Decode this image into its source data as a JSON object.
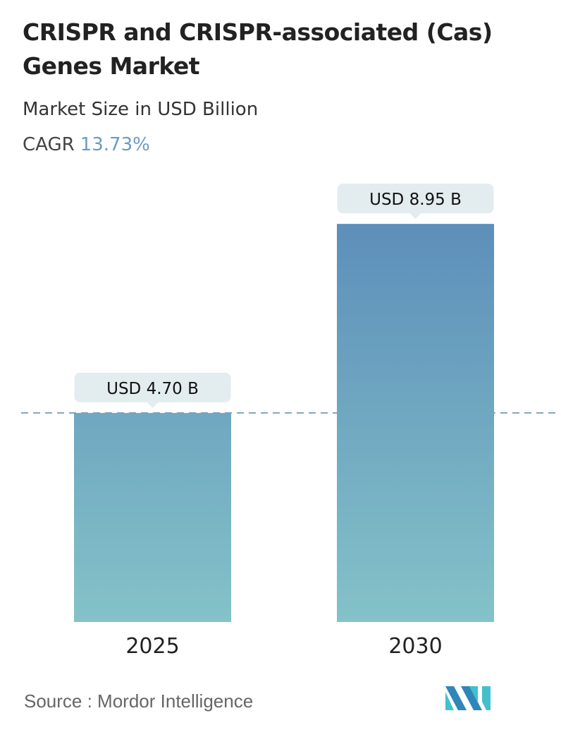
{
  "header": {
    "title": "CRISPR and CRISPR-associated (Cas) Genes Market",
    "subtitle": "Market Size in USD Billion",
    "cagr_label": "CAGR",
    "cagr_value": "13.73%"
  },
  "chart_data": {
    "type": "bar",
    "title": "CRISPR and CRISPR-associated (Cas) Genes Market",
    "ylabel": "Market Size in USD Billion",
    "categories": [
      "2025",
      "2030"
    ],
    "values": [
      4.7,
      8.95
    ],
    "data_labels": [
      "USD 4.70 B",
      "USD 8.95 B"
    ],
    "reference_line": 4.7,
    "grid": false,
    "colors": {
      "bar_top": "#5d8fba",
      "bar_bottom": "#84c2c8",
      "label_bg": "#e3ecef",
      "dash": "#5d8ab0"
    }
  },
  "footer": {
    "source": "Source :  Mordor Intelligence",
    "logo": "Mordor Intelligence"
  }
}
